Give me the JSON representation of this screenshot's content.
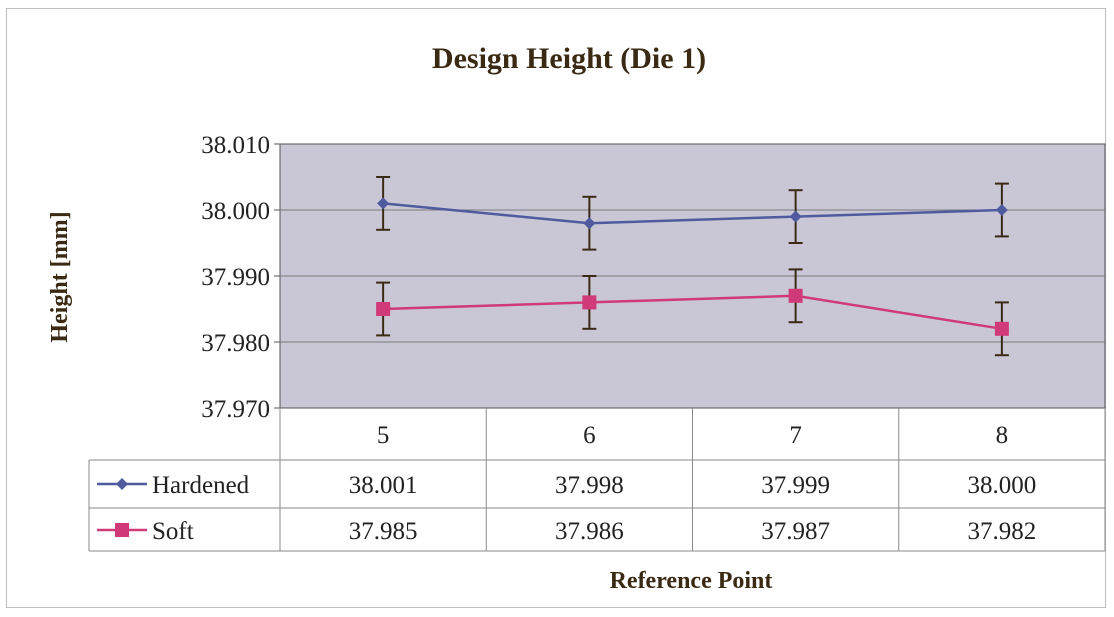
{
  "chart_data": {
    "type": "line",
    "title": "Design Height (Die 1)",
    "xlabel": "Reference Point",
    "ylabel": "Height [mm]",
    "categories": [
      "5",
      "6",
      "7",
      "8"
    ],
    "ylim": [
      37.97,
      38.01
    ],
    "yticks": [
      "37.970",
      "37.980",
      "37.990",
      "38.000",
      "38.010"
    ],
    "grid": true,
    "legend": "data-table",
    "error_bar": 0.004,
    "series": [
      {
        "name": "Hardened",
        "values": [
          38.001,
          37.998,
          37.999,
          38.0
        ],
        "labels": [
          "38.001",
          "37.998",
          "37.999",
          "38.000"
        ],
        "color": "#4f5b9e",
        "marker": "diamond"
      },
      {
        "name": "Soft",
        "values": [
          37.985,
          37.986,
          37.987,
          37.982
        ],
        "labels": [
          "37.985",
          "37.986",
          "37.987",
          "37.982"
        ],
        "color": "#d03a78",
        "marker": "square"
      }
    ]
  },
  "colors": {
    "plot_background": "#c9c7d6",
    "grid": "#7a7a7a",
    "title": "#3a2a14",
    "error_bars": "#3a2a14"
  }
}
